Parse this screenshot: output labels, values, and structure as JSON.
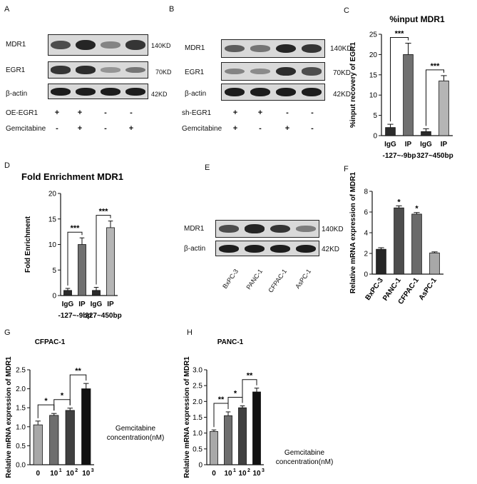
{
  "panels": {
    "A": "A",
    "B": "B",
    "C": "C",
    "D": "D",
    "E": "E",
    "F": "F",
    "G": "G",
    "H": "H"
  },
  "blotA": {
    "rows": [
      "MDR1",
      "EGR1",
      "β-actin"
    ],
    "kd": [
      "140KD",
      "70KD",
      "42KD"
    ],
    "conditions": [
      {
        "label": "OE-EGR1",
        "signs": [
          "+",
          "+",
          "-",
          "-"
        ]
      },
      {
        "label": "Gemcitabine",
        "signs": [
          "-",
          "+",
          "-",
          "+"
        ]
      }
    ],
    "intensity": [
      [
        0.7,
        0.95,
        0.35,
        0.85
      ],
      [
        0.85,
        0.9,
        0.25,
        0.45
      ],
      [
        1,
        1,
        1,
        1
      ]
    ]
  },
  "blotB": {
    "rows": [
      "MDR1",
      "EGR1",
      "β-actin"
    ],
    "kd": [
      "140KD",
      "70KD",
      "42KD"
    ],
    "conditions": [
      {
        "label": "sh-EGR1",
        "signs": [
          "+",
          "+",
          "-",
          "-"
        ]
      },
      {
        "label": "Gemcitabine",
        "signs": [
          "+",
          "-",
          "+",
          "-"
        ]
      }
    ],
    "intensity": [
      [
        0.6,
        0.45,
        0.95,
        0.85
      ],
      [
        0.35,
        0.3,
        0.9,
        0.7
      ],
      [
        1,
        1,
        1,
        1
      ]
    ]
  },
  "blotE": {
    "rows": [
      "MDR1",
      "β-actin"
    ],
    "kd": [
      "140KD",
      "42KD"
    ],
    "lanes": [
      "BxPC-3",
      "PANC-1",
      "CFPAC-1",
      "AsPC-1"
    ],
    "intensity": [
      [
        0.7,
        0.95,
        0.85,
        0.4
      ],
      [
        1,
        1,
        1,
        1
      ]
    ]
  },
  "chart_data": [
    {
      "id": "C",
      "type": "bar",
      "title": "%input MDR1",
      "ylabel": "%input recovery of EGR1",
      "ylim": [
        0,
        25
      ],
      "yticks": [
        0,
        5,
        10,
        15,
        20,
        25
      ],
      "categories": [
        "IgG",
        "IP",
        "IgG",
        "IP"
      ],
      "groups": [
        "-127~-9bp",
        "327~450bp"
      ],
      "values": [
        2.0,
        20.0,
        1.0,
        13.5
      ],
      "errors": [
        0.8,
        2.8,
        0.7,
        1.3
      ],
      "colors": [
        "#2b2b2b",
        "#707070",
        "#2b2b2b",
        "#b5b5b5"
      ],
      "sig": [
        "***",
        "***"
      ]
    },
    {
      "id": "D",
      "type": "bar",
      "title": "Fold Enrichment MDR1",
      "ylabel": "Fold Enrichment",
      "ylim": [
        0,
        20
      ],
      "yticks": [
        0,
        5,
        10,
        15,
        20
      ],
      "categories": [
        "IgG",
        "IP",
        "IgG",
        "IP"
      ],
      "groups": [
        "-127~-9bp",
        "327~450bp"
      ],
      "values": [
        1.0,
        10.0,
        1.0,
        13.3
      ],
      "errors": [
        0.4,
        1.3,
        0.6,
        1.3
      ],
      "colors": [
        "#2b2b2b",
        "#707070",
        "#2b2b2b",
        "#b5b5b5"
      ],
      "sig": [
        "***",
        "***"
      ]
    },
    {
      "id": "F",
      "type": "bar",
      "title": "",
      "ylabel": "Relative mRNA expression of MDR1",
      "ylim": [
        0,
        8
      ],
      "yticks": [
        0,
        2,
        4,
        6,
        8
      ],
      "categories": [
        "BxPC-3",
        "PANC-1",
        "CFPAC-1",
        "AsPC-1"
      ],
      "values": [
        2.4,
        6.4,
        5.8,
        2.05
      ],
      "errors": [
        0.15,
        0.2,
        0.15,
        0.1
      ],
      "colors": [
        "#262626",
        "#4d4d4d",
        "#6b6b6b",
        "#a8a8a8"
      ],
      "stars": [
        "",
        "*",
        "*",
        ""
      ]
    },
    {
      "id": "G",
      "type": "bar",
      "title": "CFPAC-1",
      "ylabel": "Relative mRNA expression of MDR1",
      "xlabel": "Gemcitabine concentration(nM)",
      "ylim": [
        0,
        2.5
      ],
      "yticks": [
        0.0,
        0.5,
        1.0,
        1.5,
        2.0,
        2.5
      ],
      "categories": [
        "0",
        "10",
        "10",
        "10"
      ],
      "superscripts": [
        "",
        "1",
        "2",
        "3"
      ],
      "values": [
        1.05,
        1.3,
        1.43,
        2.0
      ],
      "errors": [
        0.1,
        0.05,
        0.06,
        0.14
      ],
      "colors": [
        "#a8a8a8",
        "#6e6e6e",
        "#404040",
        "#111111"
      ],
      "sig": [
        "*",
        "*",
        "**"
      ]
    },
    {
      "id": "H",
      "type": "bar",
      "title": "PANC-1",
      "ylabel": "Relative mRNA expression of MDR1",
      "xlabel": "Gemcitabine concentration(nM)",
      "ylim": [
        0,
        3
      ],
      "yticks": [
        0,
        0.5,
        1.0,
        1.5,
        2.0,
        2.5,
        3.0
      ],
      "categories": [
        "0",
        "10",
        "10",
        "10"
      ],
      "superscripts": [
        "",
        "1",
        "2",
        "3"
      ],
      "values": [
        1.05,
        1.55,
        1.8,
        2.3
      ],
      "errors": [
        0.05,
        0.12,
        0.06,
        0.12
      ],
      "colors": [
        "#a8a8a8",
        "#6e6e6e",
        "#404040",
        "#111111"
      ],
      "sig": [
        "**",
        "*",
        "**"
      ]
    }
  ]
}
